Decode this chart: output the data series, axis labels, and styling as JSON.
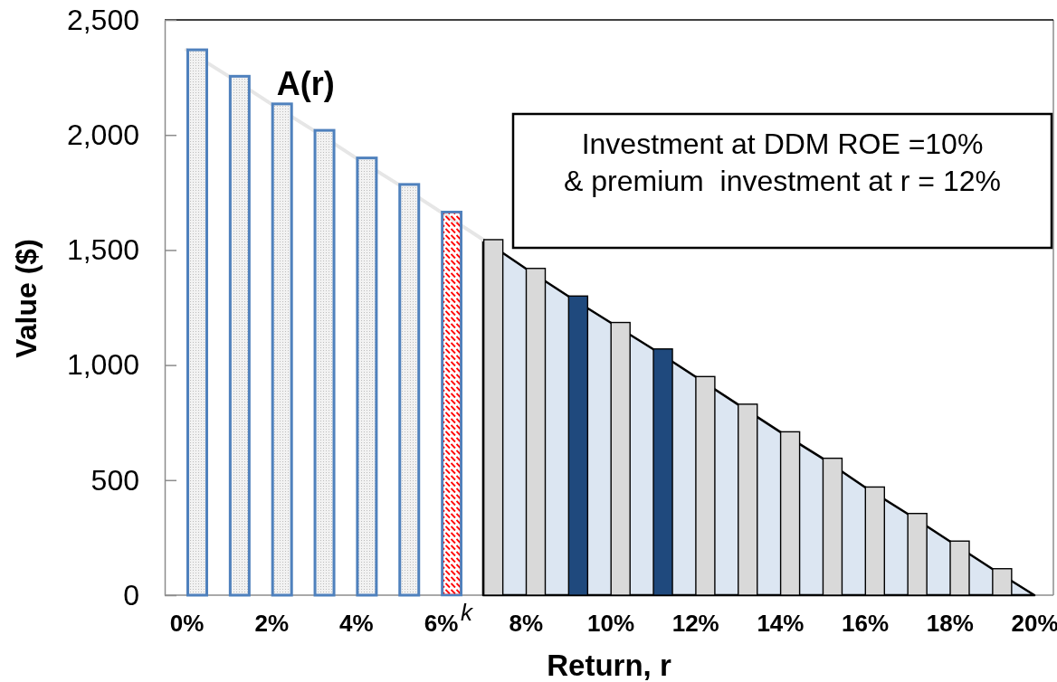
{
  "chart_data": {
    "type": "bar",
    "xlabel": "Return, r",
    "ylabel": "Value ($)",
    "categories": [
      "0%",
      null,
      "2%",
      null,
      "4%",
      null,
      "6%",
      null,
      "8%",
      null,
      "10%",
      null,
      "12%",
      null,
      "14%",
      null,
      "16%",
      null,
      "18%",
      null,
      "20%"
    ],
    "ylim": [
      0,
      2500
    ],
    "yticks": [
      0,
      500,
      {
        "value": 1000,
        "label": "1,000"
      },
      {
        "value": 1500,
        "label": "1,500"
      },
      {
        "value": 2000,
        "label": "2,000"
      },
      {
        "value": 2500,
        "label": "2,500"
      }
    ],
    "series": [
      {
        "type": "area",
        "color": "#dce6f2",
        "values": [
          null,
          null,
          null,
          null,
          null,
          null,
          null,
          1545,
          1420,
          1300,
          1185,
          1070,
          950,
          830,
          710,
          595,
          470,
          355,
          235,
          115,
          0
        ]
      },
      {
        "type": "line",
        "name": "A(r)",
        "color": "#e6e6e6",
        "values": [
          2370,
          2255,
          2135,
          2020,
          1900,
          1785,
          1665,
          1545,
          null,
          null,
          null,
          null,
          null,
          null,
          null,
          null,
          null,
          null,
          null,
          null,
          null
        ]
      },
      {
        "color": "#4f81bd",
        "values": [
          2370,
          2255,
          2135,
          2020,
          1900,
          1785,
          null,
          null,
          null,
          null,
          null,
          null,
          null,
          null,
          null,
          null,
          null,
          null,
          null,
          null,
          null
        ]
      },
      {
        "color": "#ff0000",
        "values": [
          null,
          null,
          null,
          null,
          null,
          null,
          1665,
          null,
          null,
          null,
          null,
          null,
          null,
          null,
          null,
          null,
          null,
          null,
          null,
          null,
          null
        ]
      },
      {
        "colors": [
          null,
          null,
          null,
          null,
          null,
          null,
          null,
          "#d9d9d9",
          "#d9d9d9",
          "#1f497d",
          "#d9d9d9",
          "#1f497d",
          "#d9d9d9",
          "#d9d9d9",
          "#d9d9d9",
          "#d9d9d9",
          "#d9d9d9",
          "#d9d9d9",
          "#d9d9d9",
          "#d9d9d9",
          null
        ],
        "values": [
          null,
          null,
          null,
          null,
          null,
          null,
          null,
          1545,
          1420,
          1300,
          1185,
          1070,
          950,
          830,
          710,
          595,
          470,
          355,
          235,
          115,
          null
        ]
      }
    ],
    "annotations": [
      "Investment at DDM ROE =10%\n& premium  investment at r = 12%",
      {
        "text": "k",
        "x": "6%",
        "y": 0
      }
    ]
  }
}
